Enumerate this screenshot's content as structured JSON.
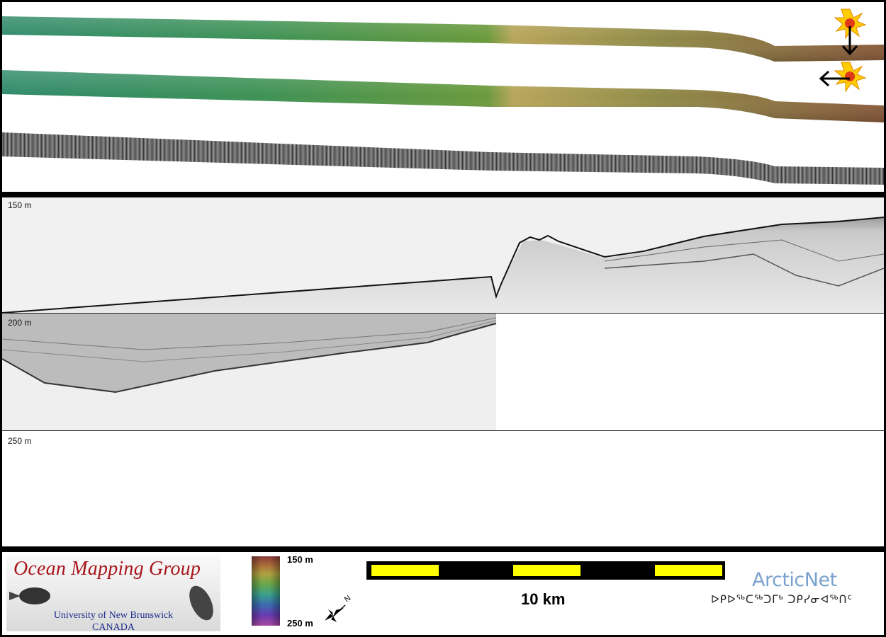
{
  "depth_labels": {
    "d150": "150 m",
    "d200": "200 m",
    "d250": "250 m"
  },
  "color_scale": {
    "top_label": "150 m",
    "bottom_label": "250 m"
  },
  "scale_bar": {
    "label": "10 km"
  },
  "logos": {
    "omg_title": "Ocean Mapping Group",
    "omg_university": "University of New Brunswick",
    "omg_country": "CANADA",
    "arcticnet": "ArcticNet",
    "arcticnet_syllabics": "ᐅᑭᐅᖅᑕᖅᑐᒥᒃ ᑐᑭᓯᓂᐊᖅᑎᑦ"
  },
  "north_arrow": {
    "label": "N"
  },
  "colors": {
    "frame": "#000000",
    "scale_yellow": "#ffff00",
    "omg_red": "#a8141b",
    "omg_blue": "#1d2a8a",
    "arcticnet_blue": "#7ba2cf"
  }
}
